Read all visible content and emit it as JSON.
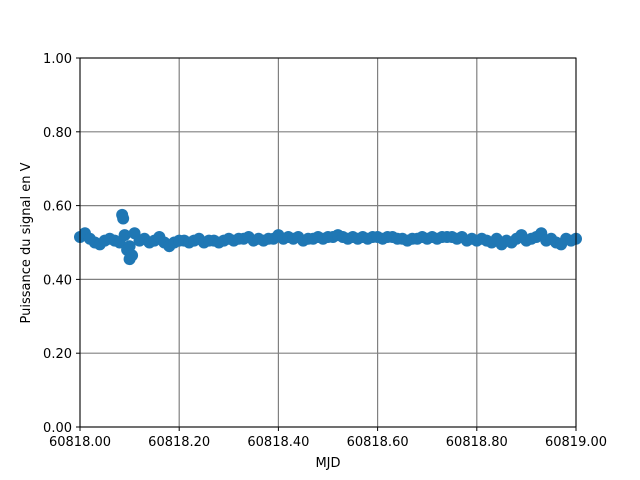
{
  "chart_data": {
    "type": "scatter",
    "xlabel": "MJD",
    "ylabel": "Puissance du signal en V",
    "x": [
      60818.0,
      60818.01,
      60818.02,
      60818.03,
      60818.04,
      60818.05,
      60818.06,
      60818.07,
      60818.08,
      60818.09,
      60818.1,
      60818.11,
      60818.12,
      60818.13,
      60818.14,
      60818.15,
      60818.16,
      60818.17,
      60818.18,
      60818.19,
      60818.2,
      60818.21,
      60818.22,
      60818.23,
      60818.24,
      60818.25,
      60818.26,
      60818.27,
      60818.28,
      60818.29,
      60818.3,
      60818.31,
      60818.32,
      60818.33,
      60818.34,
      60818.35,
      60818.36,
      60818.37,
      60818.38,
      60818.39,
      60818.4,
      60818.41,
      60818.42,
      60818.43,
      60818.44,
      60818.45,
      60818.46,
      60818.47,
      60818.48,
      60818.49,
      60818.5,
      60818.51,
      60818.52,
      60818.53,
      60818.54,
      60818.55,
      60818.56,
      60818.57,
      60818.58,
      60818.59,
      60818.6,
      60818.61,
      60818.62,
      60818.63,
      60818.64,
      60818.65,
      60818.66,
      60818.67,
      60818.68,
      60818.69,
      60818.7,
      60818.71,
      60818.72,
      60818.73,
      60818.74,
      60818.75,
      60818.76,
      60818.77,
      60818.78,
      60818.79,
      60818.8,
      60818.81,
      60818.82,
      60818.83,
      60818.84,
      60818.85,
      60818.86,
      60818.87,
      60818.88,
      60818.89,
      60818.9,
      60818.91,
      60818.92,
      60818.93,
      60818.94,
      60818.95,
      60818.96,
      60818.97,
      60818.98,
      60818.99,
      60819.0,
      60818.085,
      60818.087,
      60818.1,
      60818.095,
      60818.105
    ],
    "series": [
      {
        "color": "#1f77b4",
        "values": [
          0.515,
          0.525,
          0.51,
          0.5,
          0.495,
          0.505,
          0.51,
          0.505,
          0.5,
          0.52,
          0.49,
          0.525,
          0.505,
          0.51,
          0.5,
          0.505,
          0.515,
          0.5,
          0.49,
          0.5,
          0.505,
          0.505,
          0.5,
          0.505,
          0.51,
          0.5,
          0.505,
          0.505,
          0.5,
          0.505,
          0.51,
          0.505,
          0.51,
          0.51,
          0.515,
          0.505,
          0.51,
          0.505,
          0.51,
          0.51,
          0.52,
          0.51,
          0.515,
          0.51,
          0.515,
          0.505,
          0.51,
          0.51,
          0.515,
          0.51,
          0.515,
          0.515,
          0.52,
          0.515,
          0.51,
          0.515,
          0.51,
          0.515,
          0.51,
          0.515,
          0.515,
          0.51,
          0.515,
          0.515,
          0.51,
          0.51,
          0.505,
          0.51,
          0.51,
          0.515,
          0.51,
          0.515,
          0.51,
          0.515,
          0.515,
          0.515,
          0.51,
          0.515,
          0.505,
          0.51,
          0.505,
          0.51,
          0.505,
          0.5,
          0.51,
          0.495,
          0.505,
          0.5,
          0.51,
          0.52,
          0.505,
          0.51,
          0.515,
          0.525,
          0.505,
          0.51,
          0.5,
          0.495,
          0.51,
          0.505,
          0.51,
          0.575,
          0.565,
          0.455,
          0.48,
          0.465
        ]
      }
    ],
    "xlim": [
      60818.0,
      60819.0
    ],
    "ylim": [
      0.0,
      1.0
    ],
    "xticks": [
      {
        "value": 60818.0,
        "label": "60818.00"
      },
      {
        "value": 60818.2,
        "label": "60818.20"
      },
      {
        "value": 60818.4,
        "label": "60818.40"
      },
      {
        "value": 60818.6,
        "label": "60818.60"
      },
      {
        "value": 60818.8,
        "label": "60818.80"
      },
      {
        "value": 60819.0,
        "label": "60819.00"
      }
    ],
    "yticks": [
      {
        "value": 0,
        "label": "0.00"
      },
      {
        "value": 0.2,
        "label": "0.20"
      },
      {
        "value": 0.4,
        "label": "0.40"
      },
      {
        "value": 0.6,
        "label": "0.60"
      },
      {
        "value": 0.8,
        "label": "0.80"
      },
      {
        "value": 1.0,
        "label": "1.00"
      }
    ],
    "grid": true
  }
}
